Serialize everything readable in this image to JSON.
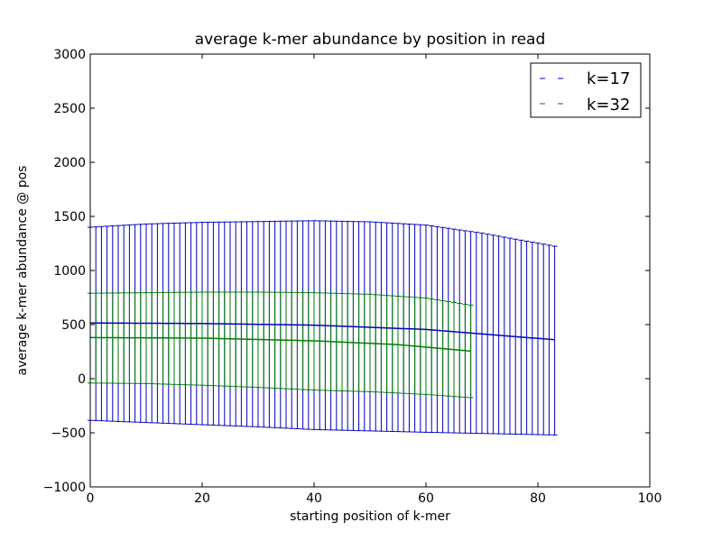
{
  "chart_data": {
    "type": "line",
    "title": "average k-mer abundance by position in read",
    "xlabel": "starting position of k-mer",
    "ylabel": "average k-mer abundance @ pos",
    "xlim": [
      0,
      100
    ],
    "ylim": [
      -1000,
      3000
    ],
    "xticks": [
      "0",
      "20",
      "40",
      "60",
      "80",
      "100"
    ],
    "yticks": [
      "−1000",
      "−500",
      "0",
      "500",
      "1000",
      "1500",
      "2000",
      "2500",
      "3000"
    ],
    "xtick_values": [
      0,
      20,
      40,
      60,
      80,
      100
    ],
    "ytick_values": [
      -1000,
      -500,
      0,
      500,
      1000,
      1500,
      2000,
      2500,
      3000
    ],
    "grid": false,
    "legend_position": "top-right",
    "error_bar_style": "vertical bars spanning mean ± spread, drawn at every integer position",
    "series": [
      {
        "name": "k=17",
        "color": "#0000bf",
        "x_start": 0,
        "x_end": 83,
        "mean_keypoints": [
          [
            0,
            515
          ],
          [
            20,
            510
          ],
          [
            40,
            495
          ],
          [
            60,
            455
          ],
          [
            83,
            360
          ]
        ],
        "upper_keypoints": [
          [
            0,
            1400
          ],
          [
            10,
            1430
          ],
          [
            20,
            1445
          ],
          [
            40,
            1460
          ],
          [
            50,
            1450
          ],
          [
            60,
            1420
          ],
          [
            70,
            1345
          ],
          [
            83,
            1225
          ]
        ],
        "lower_keypoints": [
          [
            0,
            -385
          ],
          [
            10,
            -405
          ],
          [
            20,
            -425
          ],
          [
            30,
            -445
          ],
          [
            40,
            -470
          ],
          [
            60,
            -495
          ],
          [
            83,
            -520
          ]
        ]
      },
      {
        "name": "k=32",
        "color": "#007f00",
        "x_start": 0,
        "x_end": 68,
        "mean_keypoints": [
          [
            0,
            380
          ],
          [
            20,
            375
          ],
          [
            40,
            350
          ],
          [
            55,
            315
          ],
          [
            68,
            255
          ]
        ],
        "upper_keypoints": [
          [
            0,
            790
          ],
          [
            10,
            795
          ],
          [
            20,
            800
          ],
          [
            30,
            800
          ],
          [
            40,
            795
          ],
          [
            50,
            780
          ],
          [
            60,
            745
          ],
          [
            68,
            680
          ]
        ],
        "lower_keypoints": [
          [
            0,
            -40
          ],
          [
            10,
            -45
          ],
          [
            20,
            -60
          ],
          [
            30,
            -80
          ],
          [
            40,
            -105
          ],
          [
            50,
            -120
          ],
          [
            60,
            -145
          ],
          [
            68,
            -175
          ]
        ]
      }
    ]
  }
}
